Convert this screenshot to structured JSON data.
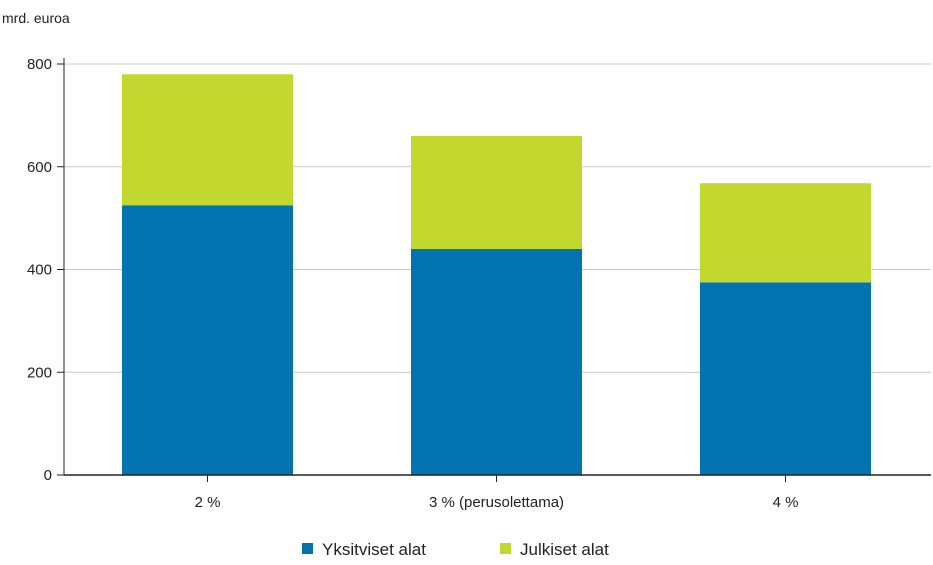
{
  "chart_data": {
    "type": "bar",
    "stacked": true,
    "ylabel": "mrd. euroa",
    "ylim": [
      0,
      800
    ],
    "yticks": [
      0,
      200,
      400,
      600,
      800
    ],
    "categories": [
      "2 %",
      "3 % (perusolettama)",
      "4 %"
    ],
    "series": [
      {
        "name": "Yksitviset alat",
        "color": "#0073b0",
        "values": [
          525,
          440,
          375
        ]
      },
      {
        "name": "Julkiset alat",
        "color": "#c2d82e",
        "values": [
          255,
          220,
          193
        ]
      }
    ],
    "grid": true,
    "legend_position": "bottom"
  }
}
